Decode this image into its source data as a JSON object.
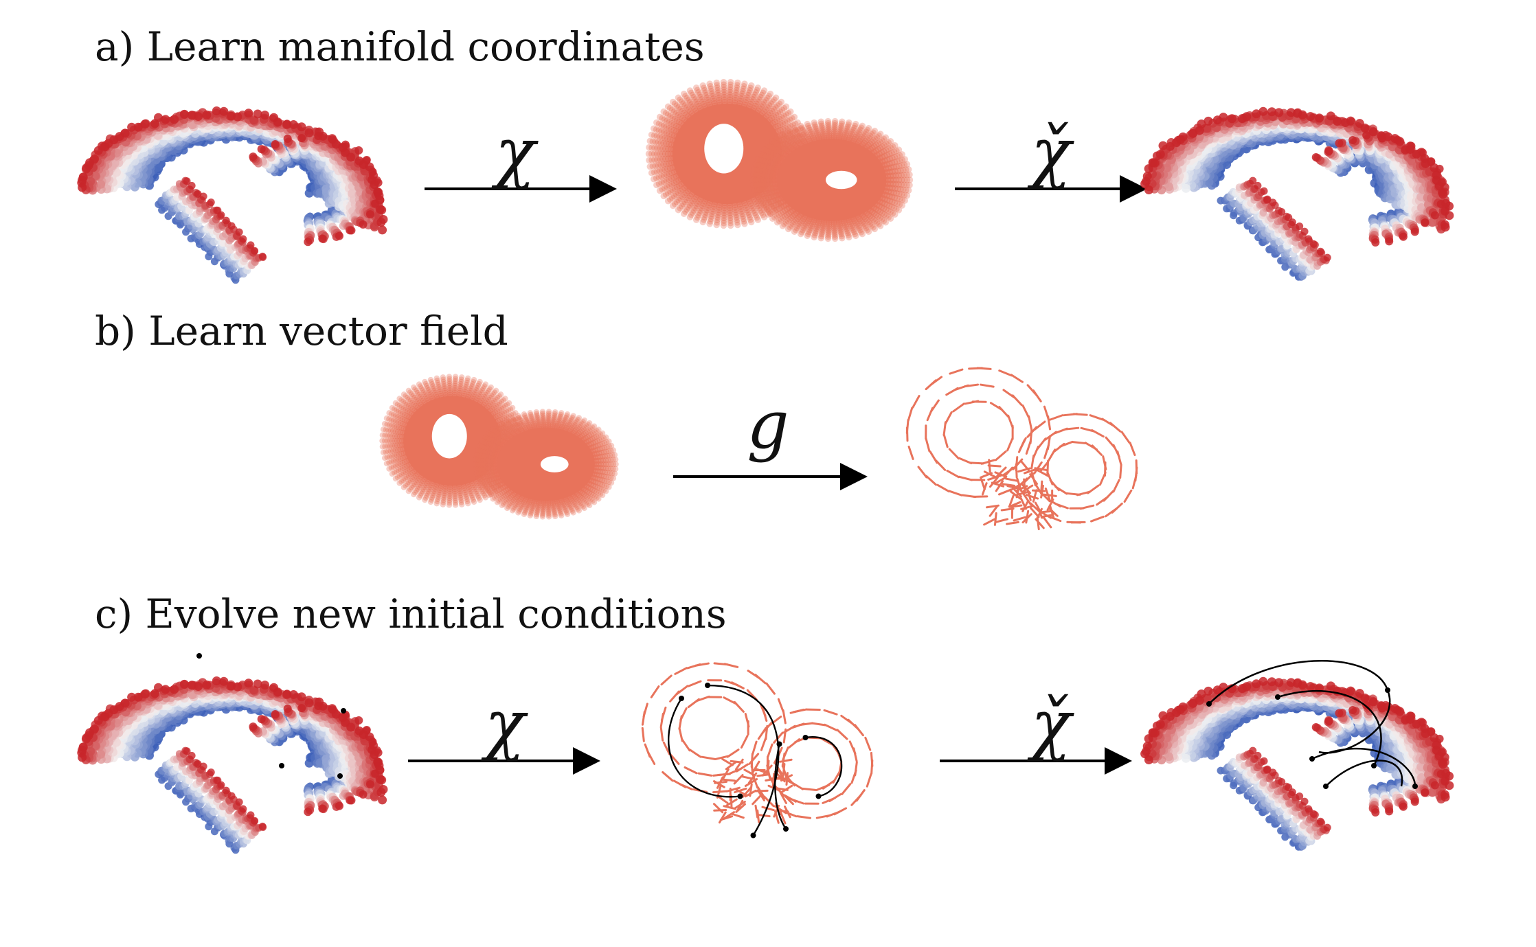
{
  "panels": {
    "a": {
      "title": "a) Learn manifold coordinates",
      "map1": "χ",
      "map2": "χ̌"
    },
    "b": {
      "title": "b) Learn vector field",
      "map": "g"
    },
    "c": {
      "title": "c) Evolve new initial conditions",
      "map1": "χ",
      "map2": "χ̌"
    }
  },
  "colors": {
    "blue": "#3d5fb8",
    "light_blue": "#b9c9e8",
    "red": "#c8262a",
    "salmon": "#e8735b",
    "light_salmon": "#f3b39f",
    "arrow": "#000000",
    "trajectory": "#000000"
  }
}
